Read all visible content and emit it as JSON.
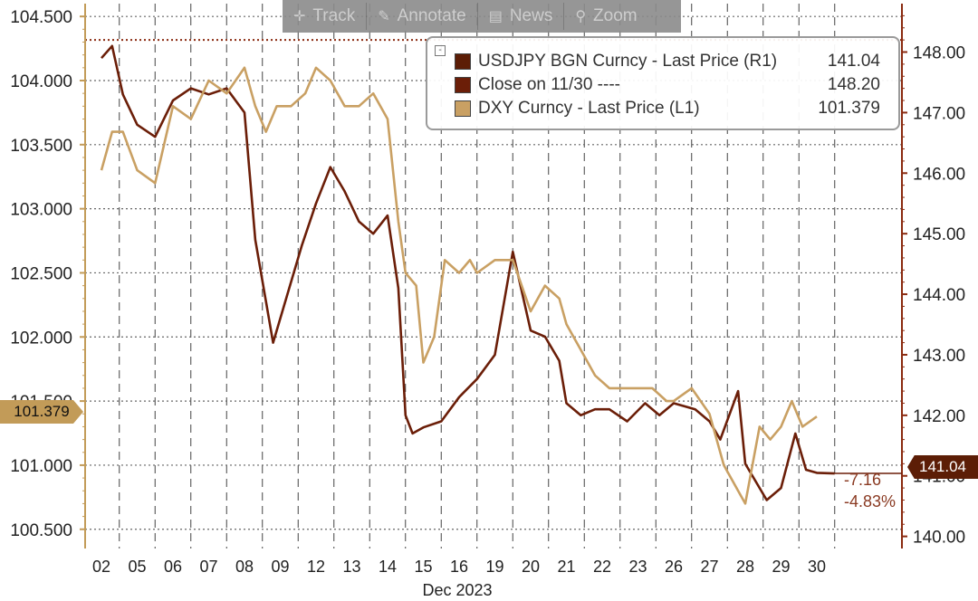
{
  "toolbar": {
    "track_label": "Track",
    "annotate_label": "Annotate",
    "news_label": "News",
    "zoom_label": "Zoom"
  },
  "legend": {
    "items": [
      {
        "label": "USDJPY BGN Curncy - Last Price (R1)",
        "value": "141.04",
        "color": "#5c1d06"
      },
      {
        "label": "Close on 11/30 ----",
        "value": "148.20",
        "color": "#6b1e08"
      },
      {
        "label": "DXY Curncy - Last Price (L1)",
        "value": "101.379",
        "color": "#c9a063"
      }
    ]
  },
  "tags": {
    "left_value": "101.379",
    "right_value": "141.04",
    "delta_abs": "-7.16",
    "delta_pct": "-4.83%"
  },
  "colors": {
    "usdjpy": "#6b1e08",
    "dxy": "#c9a063",
    "close_line": "#8a2a10",
    "grid": "#555555"
  },
  "chart_data": {
    "type": "line",
    "xlabel": "Dec 2023",
    "x_ticks": [
      "02",
      "05",
      "06",
      "07",
      "08",
      "09",
      "12",
      "13",
      "14",
      "15",
      "16",
      "19",
      "20",
      "21",
      "22",
      "23",
      "26",
      "27",
      "28",
      "29",
      "30"
    ],
    "left_axis": {
      "ticks": [
        "100.500",
        "101.000",
        "101.500",
        "102.000",
        "102.500",
        "103.000",
        "103.500",
        "104.000",
        "104.500"
      ],
      "range": [
        100.35,
        104.6
      ]
    },
    "right_axis": {
      "ticks": [
        "140.00",
        "141.00",
        "142.00",
        "143.00",
        "144.00",
        "145.00",
        "146.00",
        "147.00",
        "148.00"
      ],
      "range": [
        139.8,
        148.8
      ]
    },
    "close_reference": 148.2,
    "series": [
      {
        "name": "USDJPY BGN Curncy - Last Price (R1)",
        "axis": "right",
        "x_day_index": [
          0.0,
          0.3,
          0.6,
          1.0,
          1.5,
          2.0,
          2.5,
          3.0,
          3.5,
          4.0,
          4.3,
          4.8,
          5.2,
          5.6,
          6.0,
          6.4,
          6.8,
          7.2,
          7.6,
          8.0,
          8.3,
          8.5,
          8.7,
          9.0,
          9.5,
          10.0,
          10.5,
          11.0,
          11.5,
          12.0,
          12.4,
          12.8,
          13.0,
          13.4,
          13.8,
          14.2,
          14.7,
          15.2,
          15.6,
          16.0,
          16.6,
          17.0,
          17.3,
          17.8,
          18.0,
          18.6,
          19.0,
          19.4,
          19.7,
          20.0,
          20.5
        ],
        "values": [
          147.9,
          148.1,
          147.3,
          146.8,
          146.6,
          147.2,
          147.4,
          147.3,
          147.4,
          147.0,
          144.9,
          143.2,
          144.0,
          144.8,
          145.5,
          146.1,
          145.7,
          145.2,
          145.0,
          145.3,
          144.1,
          142.0,
          141.7,
          141.8,
          141.9,
          142.3,
          142.6,
          143.0,
          144.7,
          143.4,
          143.3,
          142.9,
          142.2,
          142.0,
          142.1,
          142.1,
          141.9,
          142.2,
          142.0,
          142.2,
          142.1,
          141.9,
          141.6,
          142.4,
          141.2,
          140.6,
          140.8,
          141.7,
          141.1,
          141.05,
          141.04
        ]
      },
      {
        "name": "DXY Curncy - Last Price (L1)",
        "axis": "left",
        "x_day_index": [
          0.0,
          0.3,
          0.6,
          1.0,
          1.5,
          2.0,
          2.5,
          3.0,
          3.5,
          4.0,
          4.3,
          4.6,
          4.9,
          5.3,
          5.7,
          6.0,
          6.4,
          6.8,
          7.2,
          7.6,
          8.0,
          8.3,
          8.5,
          8.8,
          9.0,
          9.3,
          9.6,
          10.0,
          10.3,
          10.5,
          11.0,
          11.5,
          12.0,
          12.4,
          12.8,
          13.0,
          13.4,
          13.8,
          14.2,
          14.6,
          15.0,
          15.4,
          15.8,
          16.0,
          16.5,
          17.0,
          17.4,
          17.8,
          18.0,
          18.4,
          18.7,
          19.0,
          19.3,
          19.6,
          20.0
        ],
        "values": [
          103.3,
          103.6,
          103.6,
          103.3,
          103.2,
          103.8,
          103.7,
          104.0,
          103.9,
          104.1,
          103.8,
          103.6,
          103.8,
          103.8,
          103.9,
          104.1,
          104.0,
          103.8,
          103.8,
          103.9,
          103.7,
          102.9,
          102.5,
          102.4,
          101.8,
          102.0,
          102.6,
          102.5,
          102.6,
          102.5,
          102.6,
          102.6,
          102.2,
          102.4,
          102.3,
          102.1,
          101.9,
          101.7,
          101.6,
          101.6,
          101.6,
          101.6,
          101.5,
          101.5,
          101.6,
          101.4,
          101.0,
          100.8,
          100.7,
          101.3,
          101.2,
          101.3,
          101.5,
          101.3,
          101.379
        ]
      }
    ]
  }
}
